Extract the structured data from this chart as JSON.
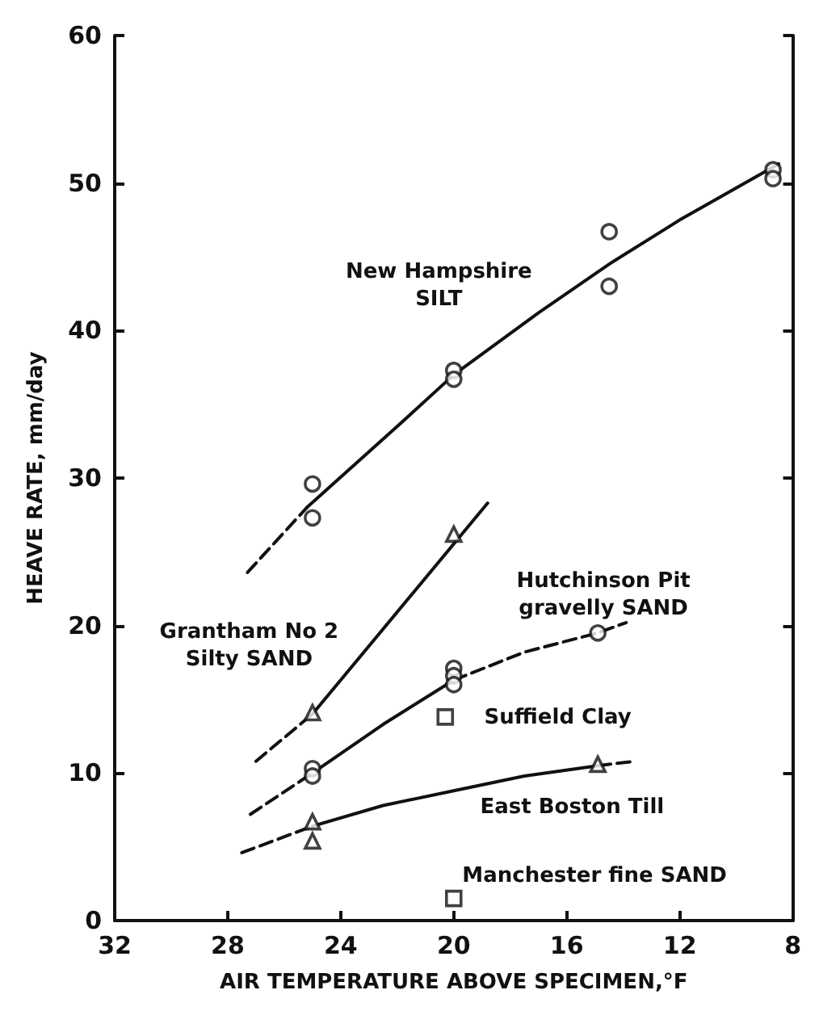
{
  "chart_data": {
    "type": "scatter",
    "xlabel": "AIR TEMPERATURE ABOVE SPECIMEN,°F",
    "ylabel": "HEAVE RATE, mm/day",
    "xlim": [
      32,
      8
    ],
    "xticks": [
      32,
      28,
      24,
      20,
      16,
      12,
      8
    ],
    "ylim": [
      0,
      60
    ],
    "yticks": [
      0,
      10,
      20,
      30,
      40,
      50,
      60
    ],
    "grid": false,
    "series": [
      {
        "marker": "circle",
        "color": "#111111",
        "x": [
          25,
          25,
          20,
          20,
          14.5,
          14.5,
          8.7,
          8.7
        ],
        "values": [
          29.6,
          27.3,
          37.3,
          36.7,
          46.7,
          43.0,
          50.9,
          50.3
        ]
      },
      {
        "type": "line",
        "marker": "none",
        "line_style": "dashed",
        "color": "#111111",
        "x": [
          27.3,
          25.2
        ],
        "values": [
          23.6,
          28.0
        ]
      },
      {
        "type": "line",
        "marker": "none",
        "line_style": "solid",
        "color": "#111111",
        "x": [
          25.2,
          22,
          20,
          17,
          14.5,
          12,
          8.5
        ],
        "values": [
          28.0,
          33.5,
          37,
          41.2,
          44.5,
          47.5,
          51.3
        ]
      },
      {
        "type": "scatter",
        "marker": "triangle",
        "color": "#111111",
        "x": [
          25,
          20
        ],
        "values": [
          14.1,
          26.2
        ]
      },
      {
        "type": "line",
        "marker": "none",
        "line_style": "dashed",
        "color": "#111111",
        "x": [
          27,
          25
        ],
        "values": [
          10.8,
          14.0
        ]
      },
      {
        "type": "line",
        "marker": "none",
        "line_style": "solid",
        "color": "#111111",
        "x": [
          25,
          18.8
        ],
        "values": [
          14.0,
          28.3
        ]
      },
      {
        "type": "scatter",
        "marker": "circle",
        "color": "#111111",
        "x": [
          25,
          25,
          20,
          20,
          20,
          14.9
        ],
        "values": [
          10.3,
          9.8,
          17.1,
          16.6,
          16.0,
          19.5
        ]
      },
      {
        "type": "line",
        "marker": "none",
        "line_style": "dashed",
        "color": "#111111",
        "x": [
          27.2,
          25
        ],
        "values": [
          7.2,
          10.0
        ]
      },
      {
        "type": "line",
        "marker": "none",
        "line_style": "solid",
        "color": "#111111",
        "x": [
          25,
          22.5,
          20
        ],
        "values": [
          10.0,
          13.3,
          16.3
        ]
      },
      {
        "type": "line",
        "marker": "none",
        "line_style": "dashed",
        "color": "#111111",
        "x": [
          20,
          17.5,
          14.9,
          13.9
        ],
        "values": [
          16.3,
          18.2,
          19.5,
          20.2
        ]
      },
      {
        "type": "scatter",
        "marker": "square",
        "color": "#111111",
        "x": [
          20.3
        ],
        "values": [
          13.8
        ]
      },
      {
        "type": "scatter",
        "marker": "triangle",
        "color": "#111111",
        "x": [
          25,
          25,
          14.9
        ],
        "values": [
          6.7,
          5.4,
          10.6
        ]
      },
      {
        "type": "line",
        "marker": "none",
        "line_style": "dashed",
        "color": "#111111",
        "x": [
          27.5,
          25
        ],
        "values": [
          4.6,
          6.4
        ]
      },
      {
        "type": "line",
        "marker": "none",
        "line_style": "solid",
        "color": "#111111",
        "x": [
          25,
          22.5,
          20,
          17.5,
          14.9
        ],
        "values": [
          6.4,
          7.8,
          8.8,
          9.8,
          10.5
        ]
      },
      {
        "type": "line",
        "marker": "none",
        "line_style": "dashed",
        "color": "#111111",
        "x": [
          14.9,
          13.6
        ],
        "values": [
          10.5,
          10.8
        ]
      },
      {
        "type": "scatter",
        "marker": "square",
        "color": "#111111",
        "x": [
          20
        ],
        "values": [
          1.5
        ]
      }
    ],
    "annotations": [
      "New Hampshire\nSILT",
      "Grantham No 2\nSilty SAND",
      "Hutchinson Pit\ngravelly SAND",
      "Suffield Clay",
      "East Boston Till",
      "Manchester fine SAND"
    ]
  }
}
